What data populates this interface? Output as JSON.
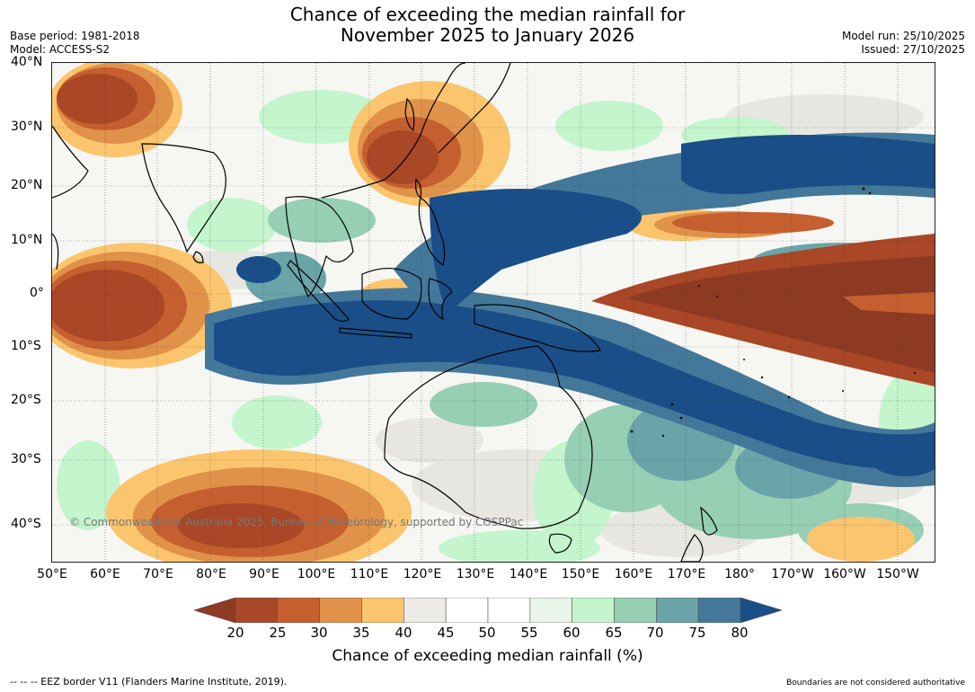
{
  "title": {
    "line1": "Chance of exceeding the median rainfall for",
    "line2": "November 2025 to January 2026"
  },
  "meta_left": {
    "base_period": "Base period: 1981-2018",
    "model": "Model: ACCESS-S2"
  },
  "meta_right": {
    "model_run": "Model run: 25/10/2025",
    "issued": "Issued: 27/10/2025"
  },
  "map": {
    "lat_labels": [
      "40°N",
      "30°N",
      "20°N",
      "10°N",
      "0°",
      "10°S",
      "20°S",
      "30°S",
      "40°S"
    ],
    "lon_labels": [
      "50°E",
      "60°E",
      "70°E",
      "80°E",
      "90°E",
      "100°E",
      "110°E",
      "120°E",
      "130°E",
      "140°E",
      "150°E",
      "160°E",
      "170°E",
      "180°",
      "170°W",
      "160°W",
      "150°W"
    ],
    "copyright": "© Commonwealth of Australia 2025, Bureau of Meteorology, supported by COSPPac"
  },
  "colorbar": {
    "ticks": [
      "20",
      "25",
      "30",
      "35",
      "40",
      "45",
      "50",
      "55",
      "60",
      "65",
      "70",
      "75",
      "80"
    ],
    "label": "Chance of exceeding median rainfall (%)",
    "under_color": "#8e3a22",
    "over_color": "#1a4e88",
    "colors": [
      "#a94726",
      "#c65f2f",
      "#e1924a",
      "#fbc56e",
      "#ecebe6",
      "#ffffff",
      "#ffffff",
      "#e9f5e9",
      "#c4f5cd",
      "#97cfb4",
      "#6aa4a8",
      "#44789a"
    ]
  },
  "footer": {
    "left": "--  --  -- EEZ border V11 (Flanders Marine Institute, 2019).",
    "right": "Boundaries are not considered authoritative"
  }
}
